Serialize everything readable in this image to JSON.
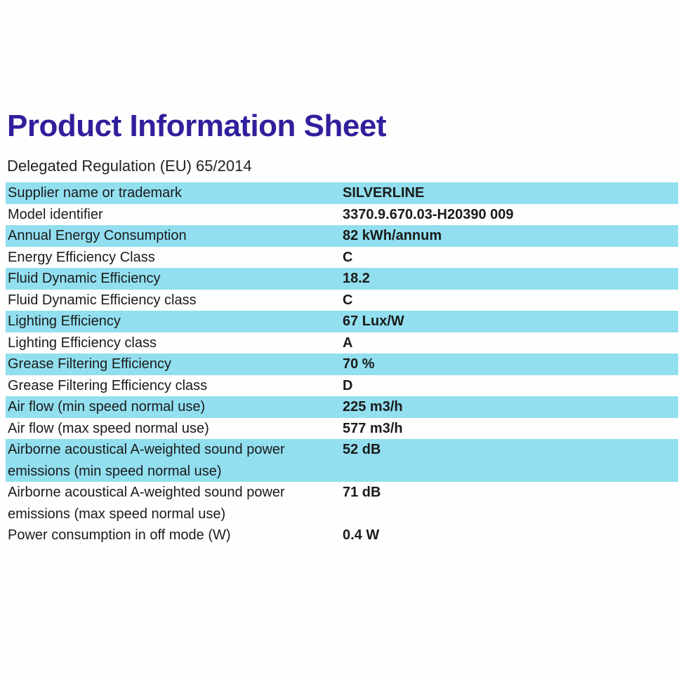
{
  "page": {
    "title": "Product Information Sheet",
    "subtitle": "Delegated Regulation (EU) 65/2014"
  },
  "colors": {
    "accent_row": "#92dfef",
    "title_text": "#301f9c",
    "body_text": "#1b1b1b"
  },
  "table": {
    "rows": [
      {
        "label": "Supplier name or trademark",
        "value": "SILVERLINE",
        "highlighted": true
      },
      {
        "label": "Model identifier",
        "value": "3370.9.670.03-H20390 009",
        "highlighted": false
      },
      {
        "label": "Annual Energy Consumption",
        "value": "82 kWh/annum",
        "highlighted": true
      },
      {
        "label": "Energy Efficiency Class",
        "value": "C",
        "highlighted": false
      },
      {
        "label": "Fluid Dynamic Efficiency",
        "value": "18.2",
        "highlighted": true
      },
      {
        "label": "Fluid Dynamic Efficiency class",
        "value": "C",
        "highlighted": false
      },
      {
        "label": "Lighting Efficiency",
        "value": "67 Lux/W",
        "highlighted": true
      },
      {
        "label": "Lighting Efficiency class",
        "value": "A",
        "highlighted": false
      },
      {
        "label": "Grease Filtering Efficiency",
        "value": "70 %",
        "highlighted": true
      },
      {
        "label": "Grease Filtering Efficiency class",
        "value": "D",
        "highlighted": false
      },
      {
        "label": "Air flow (min speed normal use)",
        "value": "225 m3/h",
        "highlighted": true
      },
      {
        "label": "Air flow (max speed normal use)",
        "value": "577 m3/h",
        "highlighted": false
      },
      {
        "label": "Airborne acoustical A-weighted sound power emissions (min speed normal use)",
        "value": "52 dB",
        "highlighted": true
      },
      {
        "label": "Airborne acoustical A-weighted sound power emissions (max speed normal use)",
        "value": "71 dB",
        "highlighted": false
      },
      {
        "label": "Power consumption in off mode (W)",
        "value": "0.4 W",
        "highlighted": false
      }
    ]
  }
}
